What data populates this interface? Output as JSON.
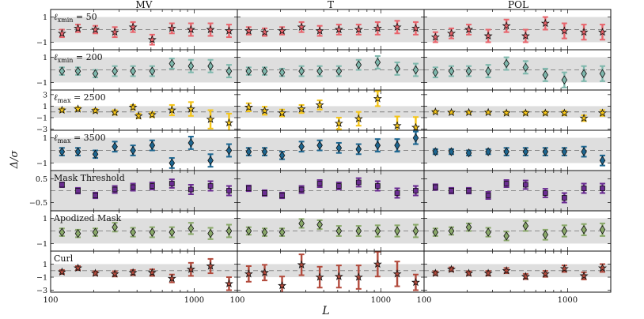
{
  "chart_data": {
    "type": "scatter",
    "xlabel": "L",
    "ylabel": "Δ/σ",
    "xscale": "log",
    "xlim": [
      100,
      2000
    ],
    "x_ticks": [
      "100",
      "1000"
    ],
    "columns": [
      "MV",
      "T",
      "POL"
    ],
    "x": [
      120,
      155,
      205,
      280,
      375,
      510,
      700,
      950,
      1300,
      1750
    ],
    "band_halfwidth": 1,
    "colors": {
      "lmin50": "#e8646c",
      "lmin200": "#7fb8ad",
      "lmax2500": "#f5c518",
      "lmax3500": "#1d6690",
      "mask": "#6a2c91",
      "apod": "#8aa96a",
      "curl": "#b24a3c",
      "band": "#dedede",
      "dash": "#8a8a8a"
    },
    "rows": [
      {
        "key": "lmin50",
        "label_base": "ℓ",
        "label_sub": "xmin",
        "label_rest": " = 50",
        "ylim": [
          -1.6,
          1.6
        ],
        "yticks": [
          "1",
          "−1"
        ],
        "ytick_values": [
          1,
          -1
        ],
        "series": [
          {
            "column": "MV",
            "values": [
              -0.3,
              0.1,
              0.0,
              -0.2,
              0.2,
              -0.8,
              0.1,
              0.0,
              0.0,
              -0.1
            ],
            "errors": [
              0.3,
              0.3,
              0.3,
              0.4,
              0.4,
              0.4,
              0.4,
              0.5,
              0.5,
              0.5
            ],
            "markers": [
              "*",
              "*",
              "*",
              "*",
              "*",
              "*",
              "*",
              "*",
              "*",
              "*"
            ]
          },
          {
            "column": "T",
            "values": [
              -0.1,
              -0.2,
              -0.1,
              0.2,
              -0.1,
              0.0,
              0.0,
              0.1,
              0.2,
              0.1
            ],
            "errors": [
              0.3,
              0.3,
              0.3,
              0.4,
              0.4,
              0.4,
              0.4,
              0.5,
              0.5,
              0.5
            ],
            "markers": [
              "*",
              "*",
              "*",
              "*",
              "*",
              "*",
              "*",
              "*",
              "*",
              "*"
            ]
          },
          {
            "column": "POL",
            "values": [
              -0.6,
              -0.3,
              0.0,
              -0.5,
              0.3,
              -0.5,
              0.5,
              -0.1,
              -0.2,
              -0.2
            ],
            "errors": [
              0.4,
              0.4,
              0.4,
              0.5,
              0.5,
              0.5,
              0.5,
              0.6,
              0.6,
              0.6
            ],
            "markers": [
              "*",
              "*",
              "*",
              "*",
              "*",
              "*",
              "*",
              "*",
              "*",
              "*"
            ]
          }
        ]
      },
      {
        "key": "lmin200",
        "label_base": "ℓ",
        "label_sub": "xmin",
        "label_rest": " = 200",
        "ylim": [
          -1.6,
          1.6
        ],
        "yticks": [
          "1",
          "−1"
        ],
        "ytick_values": [
          1,
          -1
        ],
        "series": [
          {
            "column": "MV",
            "values": [
              -0.1,
              -0.1,
              -0.3,
              -0.1,
              -0.1,
              -0.1,
              0.5,
              0.3,
              0.3,
              -0.1
            ],
            "errors": [
              0.3,
              0.3,
              0.3,
              0.4,
              0.4,
              0.4,
              0.4,
              0.5,
              0.5,
              0.5
            ],
            "markers": [
              "d",
              "d",
              "d",
              "d",
              "d",
              "d",
              "d",
              "d",
              "d",
              "d"
            ]
          },
          {
            "column": "T",
            "values": [
              -0.1,
              -0.1,
              -0.2,
              -0.1,
              -0.1,
              -0.1,
              0.4,
              0.6,
              0.1,
              0.0
            ],
            "errors": [
              0.3,
              0.3,
              0.3,
              0.4,
              0.4,
              0.4,
              0.4,
              0.5,
              0.5,
              0.5
            ],
            "markers": [
              "d",
              "d",
              "d",
              "d",
              "d",
              "d",
              "d",
              "d",
              "d",
              "d"
            ]
          },
          {
            "column": "POL",
            "values": [
              -0.2,
              -0.1,
              -0.1,
              -0.1,
              0.5,
              0.2,
              -0.4,
              -0.8,
              -0.3,
              -0.3
            ],
            "errors": [
              0.4,
              0.4,
              0.4,
              0.5,
              0.5,
              0.5,
              0.5,
              0.6,
              0.6,
              0.6
            ],
            "markers": [
              "d",
              "d",
              "d",
              "d",
              "d",
              "d",
              "d",
              "d",
              "d",
              "d"
            ]
          }
        ]
      },
      {
        "key": "lmax2500",
        "label_base": "ℓ",
        "label_sub": "max",
        "label_rest": " = 2500",
        "ylim": [
          -3.2,
          3.8
        ],
        "yticks": [
          "3",
          "1",
          "−1",
          "−3"
        ],
        "ytick_values": [
          3,
          1,
          -1,
          -3
        ],
        "series": [
          {
            "column": "MV",
            "values": [
              0.3,
              0.5,
              0.2,
              -0.1,
              0.8,
              -0.7,
              -0.5,
              0.3,
              0.5,
              -1.3,
              -1.9
            ],
            "errors": [
              0.3,
              0.3,
              0.3,
              0.4,
              0.4,
              0.4,
              0.4,
              0.9,
              1.2,
              1.6,
              1.6
            ],
            "x_override": [
              120,
              155,
              205,
              280,
              375,
              410,
              510,
              700,
              950,
              1300,
              1750
            ],
            "markers": [
              "*",
              "*",
              "*",
              "*",
              "*",
              "*",
              "*",
              "*",
              "*",
              "*",
              "*"
            ]
          },
          {
            "column": "T",
            "values": [
              0.8,
              0.2,
              -0.2,
              0.5,
              1.2,
              -2.0,
              -1.2,
              2.3,
              -2.4,
              -2.7
            ],
            "errors": [
              0.7,
              0.7,
              0.6,
              0.7,
              0.8,
              1.0,
              1.2,
              1.3,
              1.6,
              1.8
            ],
            "markers": [
              "*",
              "*",
              "*",
              "*",
              "*",
              "*",
              "*",
              "*",
              "*",
              "*"
            ]
          },
          {
            "column": "POL",
            "values": [
              0.0,
              -0.1,
              -0.1,
              -0.1,
              -0.2,
              -0.2,
              -0.2,
              -0.2,
              -1.1,
              -0.2
            ],
            "errors": [
              0.2,
              0.2,
              0.2,
              0.2,
              0.3,
              0.3,
              0.3,
              0.4,
              0.5,
              0.5
            ],
            "markers": [
              "*",
              "*",
              "*",
              "*",
              "*",
              "*",
              "*",
              "*",
              "*",
              "*"
            ]
          }
        ]
      },
      {
        "key": "lmax3500",
        "label_base": "ℓ",
        "label_sub": "max",
        "label_rest": " = 3500",
        "ylim": [
          -1.6,
          1.6
        ],
        "yticks": [
          "1",
          "−1"
        ],
        "ytick_values": [
          1,
          -1
        ],
        "series": [
          {
            "column": "MV",
            "values": [
              -0.1,
              -0.1,
              -0.3,
              0.3,
              0.0,
              0.4,
              -1.0,
              0.6,
              -0.8,
              0.0
            ],
            "errors": [
              0.3,
              0.3,
              0.3,
              0.4,
              0.4,
              0.4,
              0.4,
              0.5,
              0.5,
              0.5
            ],
            "markers": [
              "d",
              "d",
              "d",
              "d",
              "d",
              "d",
              "d",
              "d",
              "d",
              "d"
            ]
          },
          {
            "column": "T",
            "values": [
              -0.1,
              -0.1,
              -0.4,
              0.3,
              0.4,
              0.2,
              0.1,
              0.4,
              0.4,
              1.0
            ],
            "errors": [
              0.3,
              0.3,
              0.3,
              0.4,
              0.4,
              0.4,
              0.4,
              0.5,
              0.5,
              0.5
            ],
            "markers": [
              "d",
              "d",
              "d",
              "d",
              "d",
              "d",
              "d",
              "d",
              "d",
              "d"
            ]
          },
          {
            "column": "POL",
            "values": [
              -0.1,
              -0.1,
              -0.2,
              -0.1,
              -0.1,
              -0.1,
              -0.1,
              -0.1,
              -0.1,
              -0.8
            ],
            "errors": [
              0.2,
              0.2,
              0.2,
              0.2,
              0.3,
              0.3,
              0.3,
              0.3,
              0.4,
              0.4
            ],
            "markers": [
              "d",
              "d",
              "d",
              "d",
              "d",
              "d",
              "d",
              "d",
              "d",
              "d"
            ]
          }
        ]
      },
      {
        "key": "mask",
        "label_text": "Mask Threshold",
        "ylim": [
          -0.85,
          0.85
        ],
        "yticks": [
          "0.5",
          "−0.5"
        ],
        "ytick_values": [
          0.5,
          -0.5
        ],
        "series": [
          {
            "column": "MV",
            "values": [
              0.25,
              0.0,
              -0.2,
              0.05,
              0.15,
              0.2,
              0.3,
              0.05,
              0.2,
              0.0
            ],
            "errors": [
              0.1,
              0.12,
              0.12,
              0.15,
              0.15,
              0.15,
              0.18,
              0.2,
              0.2,
              0.2
            ],
            "markers": [
              "s",
              "s",
              "s",
              "s",
              "s",
              "s",
              "s",
              "s",
              "s",
              "s"
            ]
          },
          {
            "column": "T",
            "values": [
              0.1,
              -0.1,
              -0.2,
              0.05,
              0.3,
              0.2,
              0.35,
              0.2,
              -0.1,
              0.0
            ],
            "errors": [
              0.12,
              0.12,
              0.12,
              0.15,
              0.15,
              0.15,
              0.18,
              0.2,
              0.2,
              0.2
            ],
            "markers": [
              "s",
              "s",
              "s",
              "s",
              "s",
              "s",
              "s",
              "s",
              "s",
              "s"
            ]
          },
          {
            "column": "POL",
            "values": [
              0.15,
              0.0,
              0.0,
              -0.2,
              0.3,
              0.25,
              -0.1,
              -0.3,
              0.1,
              0.1
            ],
            "errors": [
              0.12,
              0.12,
              0.12,
              0.15,
              0.15,
              0.18,
              0.18,
              0.2,
              0.2,
              0.2
            ],
            "markers": [
              "s",
              "s",
              "s",
              "s",
              "s",
              "s",
              "s",
              "s",
              "s",
              "s"
            ]
          }
        ]
      },
      {
        "key": "apod",
        "label_text": "Apodized Mask",
        "ylim": [
          -1.6,
          1.6
        ],
        "yticks": [
          "1",
          "−1"
        ],
        "ytick_values": [
          1,
          -1
        ],
        "series": [
          {
            "column": "MV",
            "values": [
              -0.1,
              -0.2,
              -0.1,
              0.3,
              -0.1,
              -0.1,
              -0.1,
              0.2,
              -0.2,
              0.0
            ],
            "errors": [
              0.3,
              0.3,
              0.3,
              0.35,
              0.35,
              0.4,
              0.4,
              0.45,
              0.45,
              0.5
            ],
            "markers": [
              "d",
              "d",
              "d",
              "d",
              "d",
              "d",
              "d",
              "d",
              "d",
              "d"
            ]
          },
          {
            "column": "T",
            "values": [
              0.0,
              -0.1,
              -0.1,
              0.6,
              0.5,
              0.0,
              0.0,
              0.0,
              0.0,
              0.0
            ],
            "errors": [
              0.3,
              0.3,
              0.3,
              0.35,
              0.35,
              0.4,
              0.4,
              0.45,
              0.45,
              0.5
            ],
            "markers": [
              "d",
              "d",
              "d",
              "d",
              "d",
              "d",
              "d",
              "d",
              "d",
              "d"
            ]
          },
          {
            "column": "POL",
            "values": [
              -0.1,
              0.0,
              0.3,
              -0.1,
              -0.4,
              0.4,
              -0.3,
              0.0,
              0.1,
              0.1
            ],
            "errors": [
              0.3,
              0.3,
              0.3,
              0.35,
              0.35,
              0.4,
              0.4,
              0.45,
              0.45,
              0.5
            ],
            "markers": [
              "d",
              "d",
              "d",
              "d",
              "d",
              "d",
              "d",
              "d",
              "d",
              "d"
            ]
          }
        ]
      },
      {
        "key": "curl",
        "label_text": "Curl",
        "ylim": [
          -3.3,
          3.0
        ],
        "yticks": [
          "1",
          "−1",
          "−3"
        ],
        "ytick_values": [
          1,
          -1,
          -3
        ],
        "series": [
          {
            "column": "MV",
            "values": [
              -0.2,
              0.4,
              -0.4,
              -0.5,
              -0.3,
              -0.3,
              -1.2,
              0.2,
              0.7,
              -2.0
            ],
            "errors": [
              0.3,
              0.3,
              0.3,
              0.4,
              0.4,
              0.5,
              0.6,
              1.0,
              1.1,
              1.0
            ],
            "markers": [
              "*",
              "*",
              "*",
              "*",
              "*",
              "*",
              "*",
              "*",
              "*",
              "*"
            ]
          },
          {
            "column": "T",
            "values": [
              -0.5,
              -0.3,
              -2.3,
              0.9,
              -1.0,
              -0.9,
              -1.0,
              1.0,
              -0.5,
              -1.8
            ],
            "errors": [
              1.2,
              1.2,
              1.4,
              1.6,
              1.6,
              1.7,
              1.8,
              1.9,
              1.9,
              1.2
            ],
            "markers": [
              "*",
              "*",
              "*",
              "*",
              "*",
              "*",
              "*",
              "*",
              "*",
              "*"
            ]
          },
          {
            "column": "POL",
            "values": [
              -0.4,
              0.2,
              -0.4,
              -0.4,
              0.0,
              -0.9,
              -0.5,
              0.3,
              -0.8,
              0.4
            ],
            "errors": [
              0.3,
              0.3,
              0.3,
              0.35,
              0.4,
              0.4,
              0.45,
              0.5,
              0.55,
              0.6
            ],
            "markers": [
              "*",
              "*",
              "*",
              "*",
              "*",
              "*",
              "*",
              "*",
              "*",
              "*"
            ]
          }
        ]
      }
    ]
  }
}
